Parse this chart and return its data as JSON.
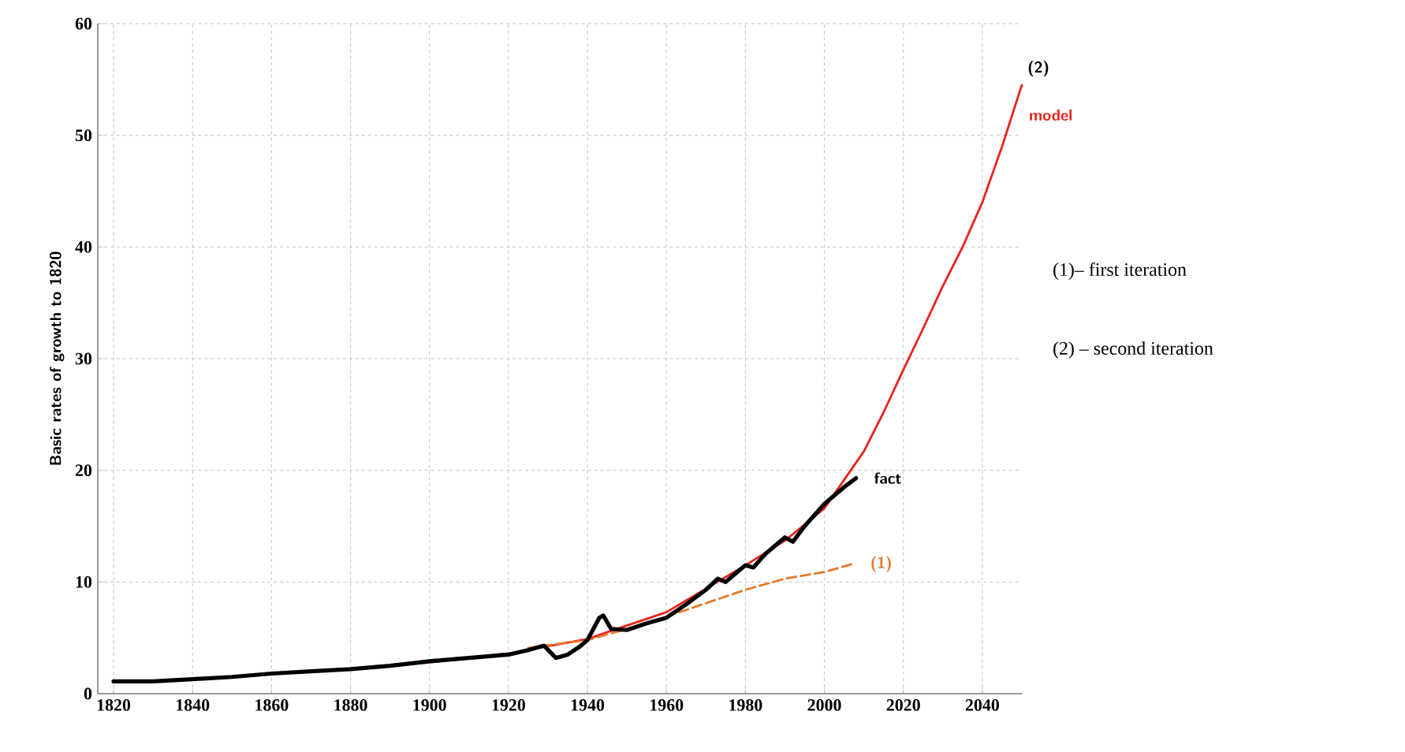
{
  "chart_data": {
    "type": "line",
    "ylabel": "Basic rates of growth to 1820",
    "xlim": [
      1816,
      2050
    ],
    "xticks": [
      1820,
      1840,
      1860,
      1880,
      1900,
      1920,
      1940,
      1960,
      1980,
      2000,
      2020,
      2040
    ],
    "ylim": [
      0,
      60
    ],
    "yticks": [
      0,
      10,
      20,
      30,
      40,
      50,
      60
    ],
    "grid": true,
    "marker": "none",
    "series": [
      {
        "name": "model",
        "color": "#e8231e",
        "line_style": "solid",
        "x": [
          1880,
          1900,
          1920,
          1940,
          1960,
          1970,
          1980,
          1990,
          2000,
          2010,
          2015,
          2020,
          2025,
          2030,
          2035,
          2040,
          2045,
          2050
        ],
        "values": [
          2.2,
          2.8,
          3.6,
          4.9,
          7.3,
          9.4,
          11.5,
          13.7,
          16.6,
          21.7,
          25.2,
          29.0,
          32.7,
          36.5,
          40.0,
          44.0,
          49.0,
          54.5
        ]
      },
      {
        "name": "(1)",
        "color": "#e8782a",
        "line_style": "dashed",
        "x": [
          1925,
          1940,
          1950,
          1960,
          1970,
          1980,
          1990,
          2000,
          2007
        ],
        "values": [
          4.1,
          4.8,
          5.8,
          6.9,
          8.1,
          9.3,
          10.3,
          10.9,
          11.6
        ]
      },
      {
        "name": "fact",
        "color": "#000000",
        "line_style": "solid",
        "x": [
          1820,
          1830,
          1840,
          1850,
          1860,
          1870,
          1880,
          1890,
          1900,
          1910,
          1920,
          1925,
          1929,
          1932,
          1935,
          1938,
          1940,
          1943,
          1944,
          1946,
          1950,
          1955,
          1960,
          1965,
          1970,
          1973,
          1975,
          1980,
          1982,
          1985,
          1990,
          1992,
          1995,
          2000,
          2005,
          2008
        ],
        "values": [
          1.1,
          1.1,
          1.3,
          1.5,
          1.8,
          2.0,
          2.2,
          2.5,
          2.9,
          3.2,
          3.5,
          3.9,
          4.3,
          3.2,
          3.5,
          4.2,
          4.8,
          6.8,
          7.0,
          5.8,
          5.7,
          6.3,
          6.8,
          8.0,
          9.3,
          10.3,
          10.0,
          11.5,
          11.3,
          12.5,
          14.0,
          13.6,
          15.0,
          17.0,
          18.5,
          19.3
        ]
      }
    ],
    "annotations": [
      {
        "text": "(2)",
        "x": 2050,
        "y": 54.5
      },
      "(1)– first iteration",
      "(2) – second iteration"
    ]
  }
}
